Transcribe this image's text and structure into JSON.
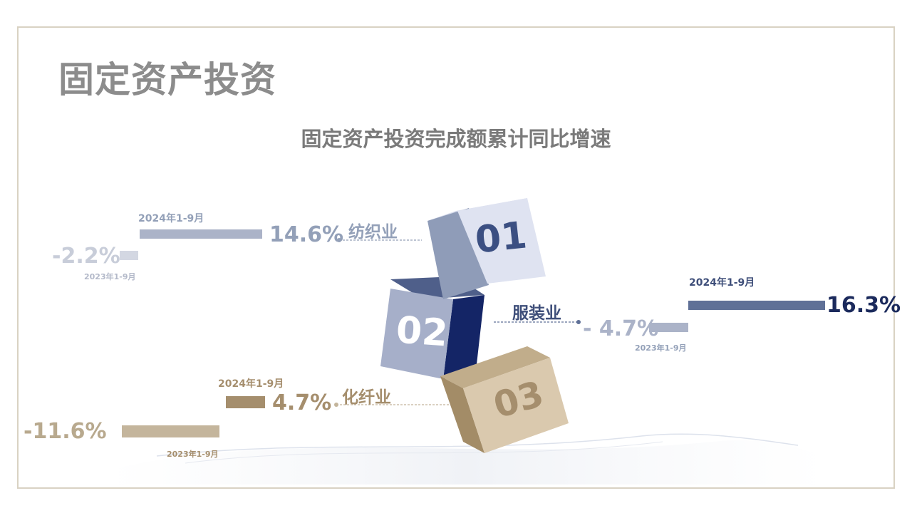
{
  "page": {
    "title": "固定资产投资"
  },
  "chart_data": {
    "type": "bar",
    "title": "固定资产投资完成额累计同比增速",
    "periods": [
      "2024年1-9月",
      "2023年1-9月"
    ],
    "unit": "%",
    "categories": [
      {
        "index": "01",
        "name": "纺织业",
        "values": [
          14.6,
          -2.2
        ],
        "value_labels": [
          "14.6%",
          "-2.2%"
        ]
      },
      {
        "index": "02",
        "name": "服装业",
        "values": [
          16.3,
          -4.7
        ],
        "value_labels": [
          "16.3%",
          "- 4.7%"
        ]
      },
      {
        "index": "03",
        "name": "化纤业",
        "values": [
          4.7,
          -11.6
        ],
        "value_labels": [
          "4.7%",
          "-11.6%"
        ]
      }
    ],
    "colors": {
      "textile_2024": "#abb3c8",
      "textile_2023": "#d3d7e2",
      "apparel_2024": "#5f7097",
      "apparel_2023": "#abb3c8",
      "fiber_2024": "#a58e6d",
      "fiber_2023": "#c4b59c",
      "textile_text": "#93a0b8",
      "apparel_text": "#1b2a5c",
      "fiber_text": "#a58e6d"
    }
  }
}
